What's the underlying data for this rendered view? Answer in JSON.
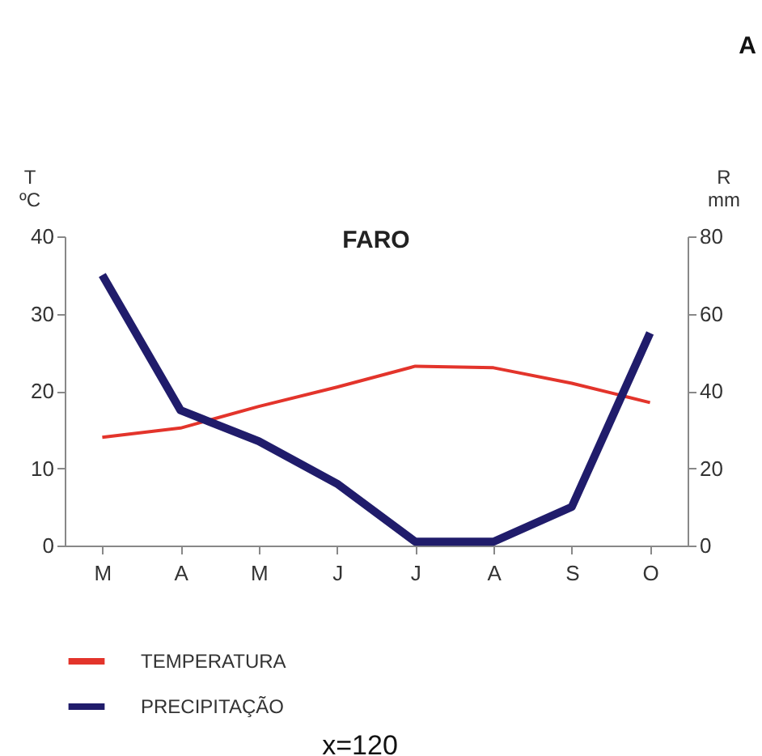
{
  "chart_data": {
    "type": "line",
    "title": "FARO",
    "ylabel": "T\nºC",
    "y2label": "R\nmm",
    "categories": [
      "M",
      "A",
      "M",
      "J",
      "J",
      "A",
      "S",
      "O"
    ],
    "series": [
      {
        "name": "TEMPERATURA",
        "color": "#e3342b",
        "values": [
          14,
          15.2,
          18,
          20.5,
          23.2,
          23,
          21,
          18.5
        ]
      },
      {
        "name": "PRECIPITAÇÃO",
        "color": "#201c6b",
        "values": [
          70,
          35,
          27,
          16,
          1,
          1,
          10,
          55
        ],
        "axis": "y2"
      }
    ],
    "ylim": [
      0,
      40
    ],
    "yticks": [
      0,
      10,
      20,
      30,
      40
    ],
    "y2lim": [
      0,
      80
    ],
    "y2ticks": [
      0,
      20,
      40,
      60,
      80
    ],
    "grid": false,
    "legend": "bottom left",
    "marker": "none",
    "line_style": "solid",
    "annotations": [
      "A",
      "x=120"
    ]
  }
}
